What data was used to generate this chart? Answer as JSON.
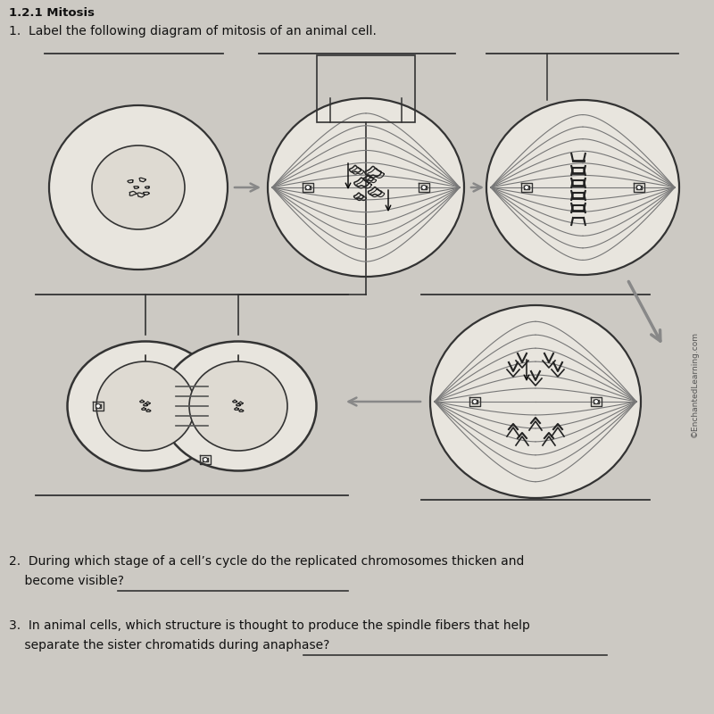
{
  "title": "1.2.1 Mitosis",
  "question1": "1.  Label the following diagram of mitosis of an animal cell.",
  "question2_line1": "2.  During which stage of a cell’s cycle do the replicated chromosomes thicken and",
  "question2_line2": "    become visible?",
  "question3_line1": "3.  In animal cells, which structure is thought to produce the spindle fibers that help",
  "question3_line2": "    separate the sister chromatids during anaphase?",
  "bg_color": "#ccc9c3",
  "cell_fill": "#e8e5de",
  "nucleus_fill": "#dedad2",
  "text_color": "#111111",
  "line_color": "#333333",
  "spindle_color": "#777777",
  "arrow_color": "#888888",
  "watermark": "©EnchantedLearning.com"
}
